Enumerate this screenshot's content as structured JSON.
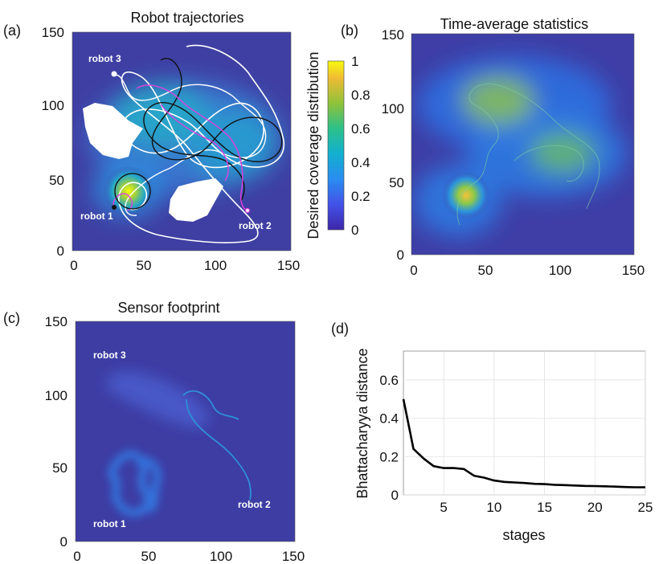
{
  "panel_a": {
    "label": "(a)",
    "title": "Robot trajectories",
    "x_ticks": [
      "0",
      "50",
      "100",
      "150"
    ],
    "y_ticks": [
      "0",
      "50",
      "100",
      "150"
    ],
    "obstacle_upper": "obstacle",
    "obstacle_lower": "obstacle",
    "robot1": "robot 1",
    "robot2": "robot 2",
    "robot3": "robot 3",
    "colorbar_label": "Desired coverage distribution",
    "colorbar_ticks": [
      "0",
      "0.2",
      "0.4",
      "0.6",
      "0.8",
      "1"
    ]
  },
  "panel_b": {
    "label": "(b)",
    "title": "Time-average statistics",
    "x_ticks": [
      "0",
      "50",
      "100",
      "150"
    ],
    "y_ticks": [
      "0",
      "50",
      "100",
      "150"
    ]
  },
  "panel_c": {
    "label": "(c)",
    "title": "Sensor footprint",
    "x_ticks": [
      "0",
      "50",
      "100",
      "150"
    ],
    "y_ticks": [
      "0",
      "50",
      "100",
      "150"
    ],
    "robot1": "robot 1",
    "robot2": "robot 2",
    "robot3": "robot 3"
  },
  "panel_d": {
    "label": "(d)"
  },
  "colors": {
    "background": "#3f3fa3",
    "line_white": "#ffffff",
    "line_black": "#111111",
    "line_magenta": "#e040e0",
    "trail_blue": "#2f8fd8",
    "curve": "#000000"
  },
  "chart_data": {
    "type": "line",
    "title": "",
    "xlabel": "stages",
    "ylabel": "Bhattacharyya distance",
    "xlim": [
      1,
      25
    ],
    "ylim": [
      0,
      0.75
    ],
    "x_ticks": [
      5,
      10,
      15,
      20,
      25
    ],
    "y_ticks": [
      0,
      0.2,
      0.4,
      0.6
    ],
    "grid": true,
    "series": [
      {
        "name": "Bhattacharyya distance",
        "x": [
          1,
          2,
          3,
          4,
          5,
          6,
          7,
          8,
          9,
          10,
          11,
          12,
          13,
          14,
          15,
          16,
          17,
          18,
          19,
          20,
          21,
          22,
          23,
          24,
          25
        ],
        "y": [
          0.5,
          0.24,
          0.19,
          0.15,
          0.14,
          0.14,
          0.135,
          0.1,
          0.09,
          0.075,
          0.068,
          0.065,
          0.062,
          0.058,
          0.056,
          0.053,
          0.051,
          0.049,
          0.047,
          0.046,
          0.045,
          0.043,
          0.041,
          0.04,
          0.04
        ]
      }
    ]
  }
}
